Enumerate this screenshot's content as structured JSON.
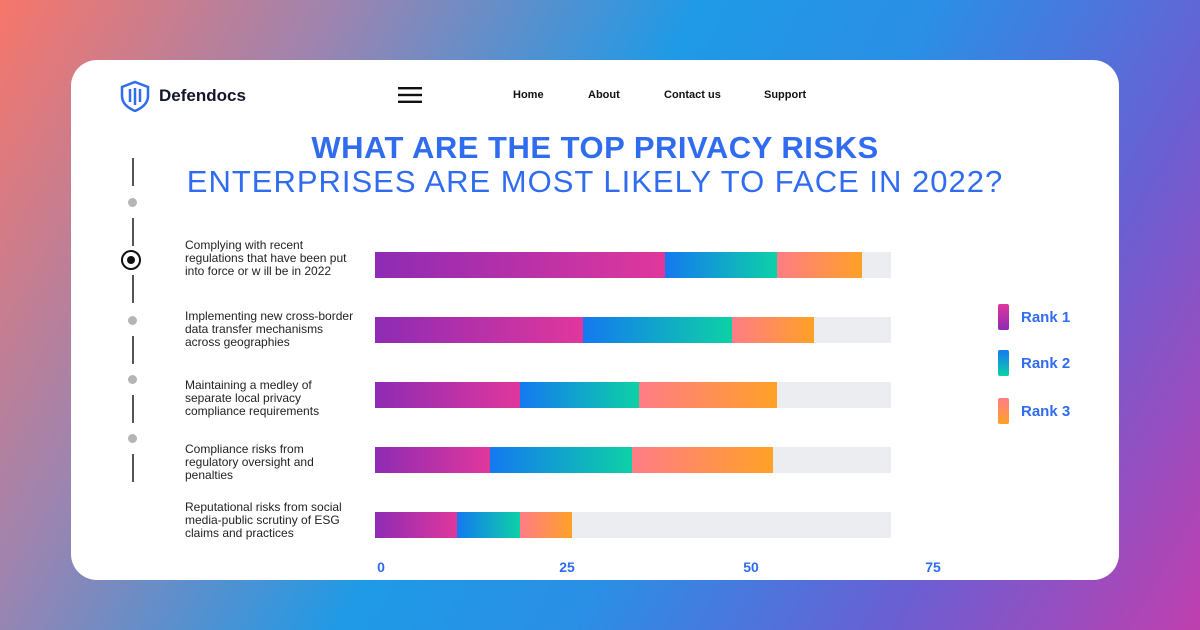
{
  "brand": {
    "name": "Defendocs"
  },
  "nav": {
    "home": "Home",
    "about": "About",
    "contact": "Contact us",
    "support": "Support"
  },
  "colors": {
    "accent": "#2f6cf0",
    "track": "#ebedf1"
  },
  "chart_data": {
    "type": "bar",
    "orientation": "horizontal",
    "stacked": true,
    "title": "WHAT ARE THE TOP PRIVACY RISKS",
    "subtitle": "ENTERPRISES ARE MOST LIKELY TO FACE IN 2022?",
    "categories": [
      "Complying with recent regulations that have been put into force or w ill be in 2022",
      "Implementing new cross-border data transfer mechanisms across geographies",
      "Maintaining a medley of separate local privacy compliance requirements",
      "Compliance risks from regulatory oversight and penalties",
      "Reputational risks from social media-public scrutiny of ESG claims and practices"
    ],
    "series": [
      {
        "name": "Rank 1",
        "values": [
          39,
          28,
          19.5,
          15.5,
          11
        ]
      },
      {
        "name": "Rank 2",
        "values": [
          15,
          20,
          16,
          19,
          8.5
        ]
      },
      {
        "name": "Rank 3",
        "values": [
          11.5,
          11,
          18.5,
          19,
          7
        ]
      }
    ],
    "xticks": [
      "0",
      "25",
      "50",
      "75"
    ],
    "xlim": [
      0,
      75
    ],
    "legend": "right",
    "xlabel": "",
    "ylabel": ""
  }
}
